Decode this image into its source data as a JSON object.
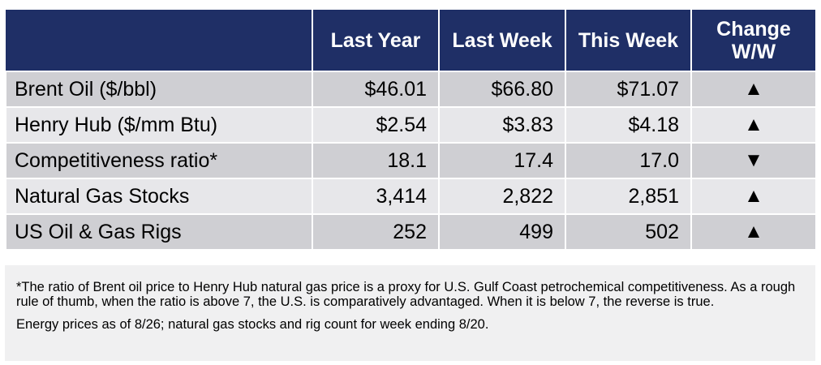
{
  "table": {
    "headers": [
      "",
      "Last Year",
      "Last Week",
      "This Week",
      "Change W/W"
    ],
    "change_header_lines": [
      "Change",
      "W/W"
    ],
    "rows": [
      {
        "label": "Brent Oil ($/bbl)",
        "last_year": "$46.01",
        "last_week": "$66.80",
        "this_week": "$71.07",
        "change": "▲",
        "change_icon": "up-triangle-icon"
      },
      {
        "label": "Henry Hub ($/mm Btu)",
        "last_year": "$2.54",
        "last_week": "$3.83",
        "this_week": "$4.18",
        "change": "▲",
        "change_icon": "up-triangle-icon"
      },
      {
        "label": "Competitiveness ratio*",
        "last_year": "18.1",
        "last_week": "17.4",
        "this_week": "17.0",
        "change": "▼",
        "change_icon": "down-triangle-icon"
      },
      {
        "label": "Natural Gas Stocks",
        "last_year": "3,414",
        "last_week": "2,822",
        "this_week": "2,851",
        "change": "▲",
        "change_icon": "up-triangle-icon"
      },
      {
        "label": "US Oil & Gas Rigs",
        "last_year": "252",
        "last_week": "499",
        "this_week": "502",
        "change": "▲",
        "change_icon": "up-triangle-icon"
      }
    ]
  },
  "notes": {
    "footnote": "*The ratio of Brent oil price to Henry Hub natural gas price is a proxy for U.S. Gulf Coast petrochemical competitiveness. As a rough rule of thumb, when the ratio is above 7, the U.S. is comparatively advantaged. When it is below 7, the reverse is true.",
    "dates": "Energy prices as of 8/26; natural gas stocks and rig count for week ending 8/20."
  },
  "colors": {
    "header_bg": "#1f2f66",
    "row_dark": "#cfcfd3",
    "row_light": "#e7e7ea",
    "note_bg": "#f0f0f1"
  }
}
